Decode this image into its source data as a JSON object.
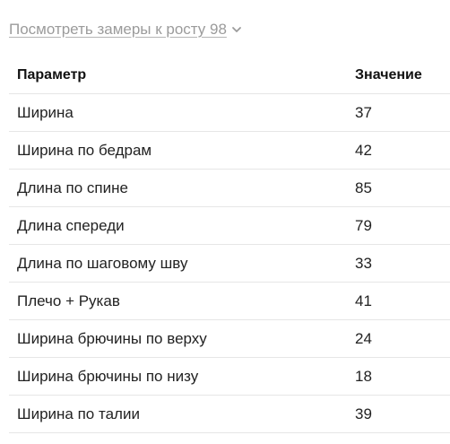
{
  "toggle": {
    "label": "Посмотреть замеры к росту 98",
    "icon": "chevron-down-icon"
  },
  "table": {
    "headers": [
      "Параметр",
      "Значение"
    ],
    "rows": [
      [
        "Ширина",
        "37"
      ],
      [
        "Ширина по бедрам",
        "42"
      ],
      [
        "Длина по спине",
        "85"
      ],
      [
        "Длина спереди",
        "79"
      ],
      [
        "Длина по шаговому шву",
        "33"
      ],
      [
        "Плечо + Рукав",
        "41"
      ],
      [
        "Ширина брючины по верху",
        "24"
      ],
      [
        "Ширина брючины по низу",
        "18"
      ],
      [
        "Ширина по талии",
        "39"
      ]
    ]
  }
}
